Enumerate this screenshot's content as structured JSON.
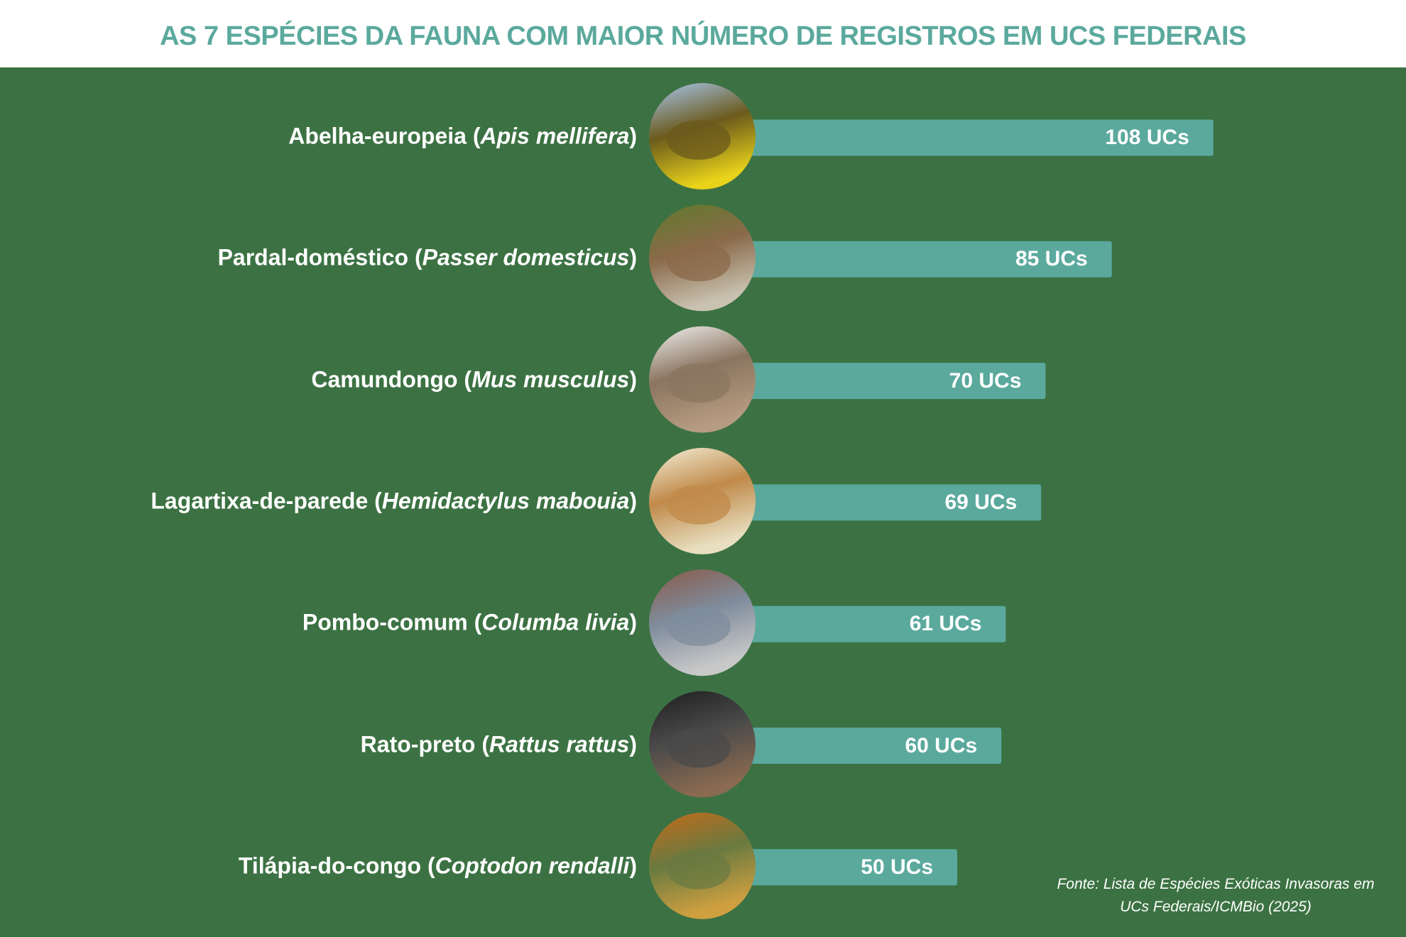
{
  "title": "AS 7 ESPÉCIES DA FAUNA COM MAIOR NÚMERO DE REGISTROS EM UCS FEDERAIS",
  "colors": {
    "background": "#3c7243",
    "bar": "#5ba99d",
    "title": "#5ba99d"
  },
  "chart_data": {
    "type": "bar",
    "orientation": "horizontal",
    "title": "AS 7 ESPÉCIES DA FAUNA COM MAIOR NÚMERO DE REGISTROS EM UCS FEDERAIS",
    "categories": [
      {
        "common": "Abelha-europeia",
        "scientific": "Apis mellifera",
        "image": "bee"
      },
      {
        "common": "Pardal-doméstico",
        "scientific": "Passer domesticus",
        "image": "sparrow"
      },
      {
        "common": "Camundongo",
        "scientific": "Mus musculus",
        "image": "mouse"
      },
      {
        "common": "Lagartixa-de-parede",
        "scientific": "Hemidactylus mabouia",
        "image": "gecko"
      },
      {
        "common": "Pombo-comum",
        "scientific": "Columba livia",
        "image": "pigeon"
      },
      {
        "common": "Rato-preto",
        "scientific": "Rattus rattus",
        "image": "rat"
      },
      {
        "common": "Tilápia-do-congo",
        "scientific": "Coptodon rendalli",
        "image": "fish"
      }
    ],
    "values": [
      108,
      85,
      70,
      69,
      61,
      60,
      50
    ],
    "value_labels": [
      "108 UCs",
      "85 UCs",
      "70 UCs",
      "69 UCs",
      "61 UCs",
      "60 UCs",
      "50 UCs"
    ],
    "unit": "UCs",
    "grid": false,
    "legend": "none"
  },
  "source": {
    "line1": "Fonte: Lista de Espécies Exóticas Invasoras em",
    "line2": "UCs Federais/ICMBio (2025)"
  }
}
